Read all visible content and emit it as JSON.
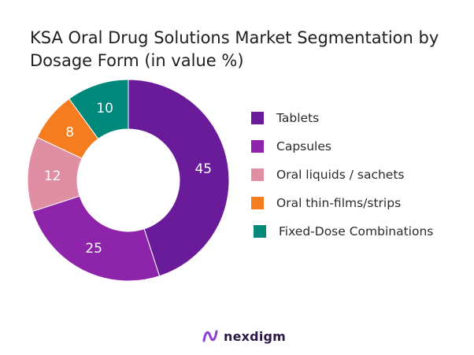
{
  "chart_data": {
    "type": "pie",
    "title": "KSA Oral Drug Solutions Market Segmentation by Dosage Form (in value %)",
    "categories": [
      "Tablets",
      "Capsules",
      "Oral liquids / sachets",
      "Oral thin-films/strips",
      "Fixed-Dose Combinations"
    ],
    "values": [
      45,
      25,
      12,
      8,
      10
    ],
    "data_labels": [
      "45",
      "25",
      "12",
      "8",
      "10"
    ],
    "colors": [
      "#6a1b9a",
      "#8e24aa",
      "#e08ea3",
      "#f57c1f",
      "#00897b"
    ],
    "donut": true,
    "legend": "right"
  },
  "logo": {
    "text": "nexdigm",
    "icon": "nexdigm-logo-icon"
  }
}
